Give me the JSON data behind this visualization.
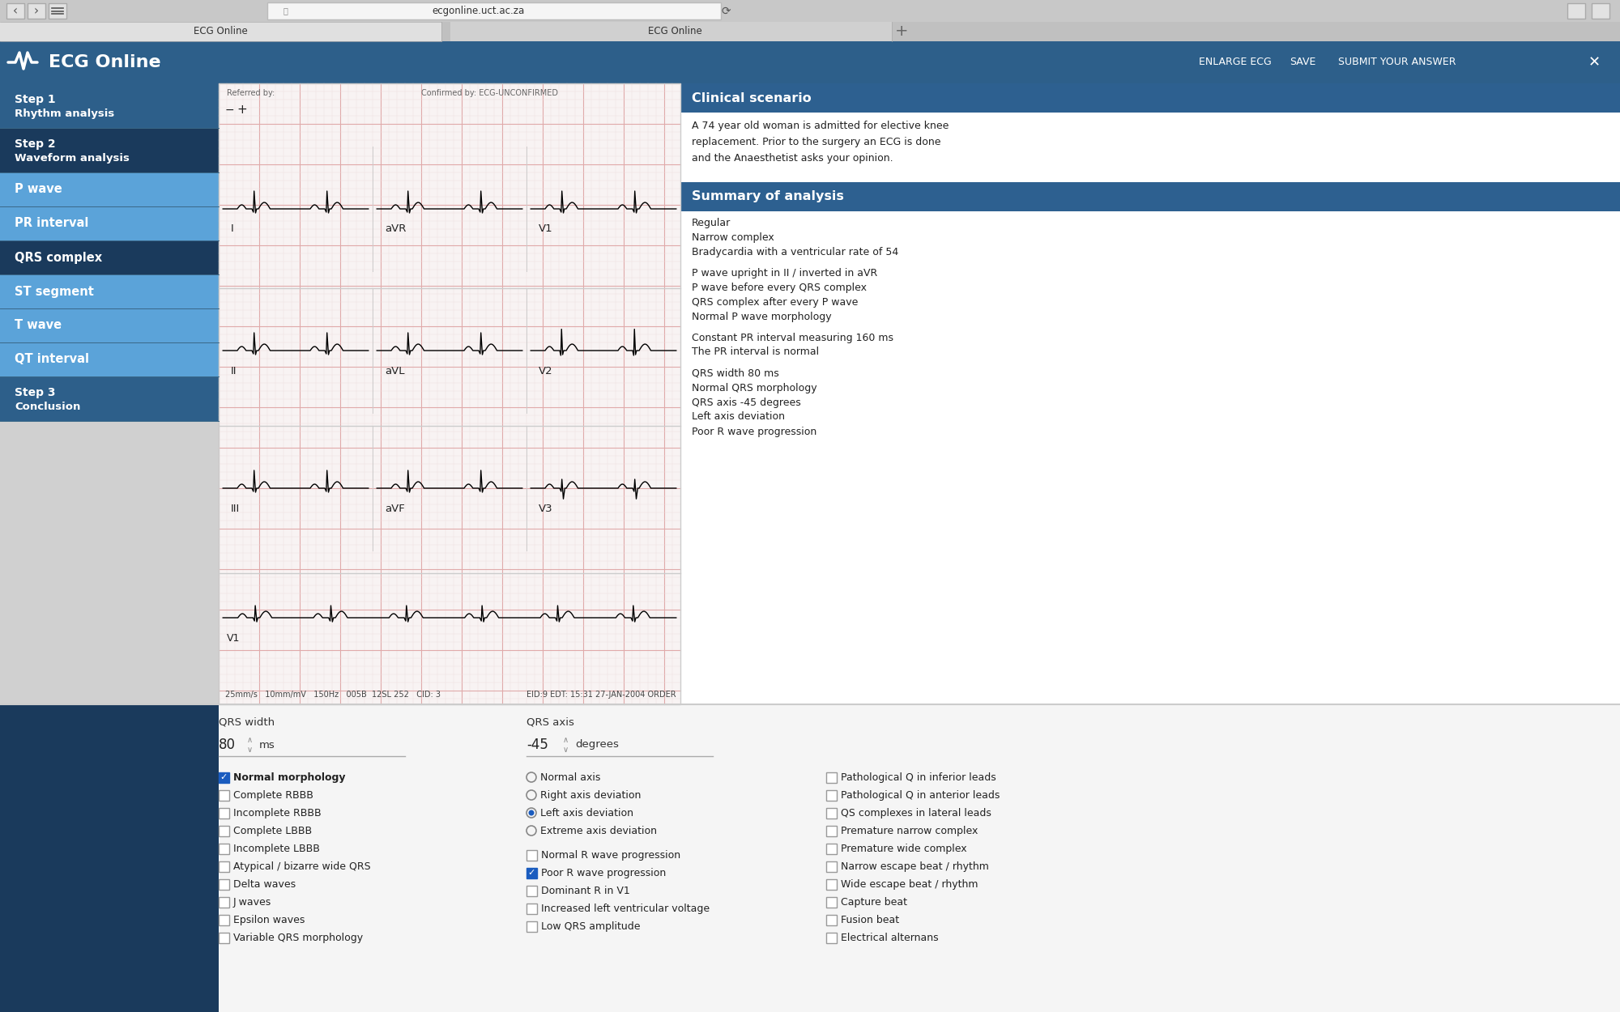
{
  "browser_bg": "#d0d0d0",
  "browser_url_text": "ecgonline.uct.ac.za",
  "tab_text_left": "ECG Online",
  "tab_text_right": "ECG Online",
  "navbar_bg": "#2d5f8a",
  "navbar_title": "ECG Online",
  "navbar_buttons": [
    "ENLARGE ECG",
    "SAVE",
    "SUBMIT YOUR ANSWER"
  ],
  "sidebar_items": [
    {
      "label": "Step 1\nRhythm analysis",
      "bg": "#2d5f8a"
    },
    {
      "label": "Step 2\nWaveform analysis",
      "bg": "#1a3a5c"
    },
    {
      "label": "P wave",
      "bg": "#5ba3d9"
    },
    {
      "label": "PR interval",
      "bg": "#5ba3d9"
    },
    {
      "label": "QRS complex",
      "bg": "#1a3a5c"
    },
    {
      "label": "ST segment",
      "bg": "#5ba3d9"
    },
    {
      "label": "T wave",
      "bg": "#5ba3d9"
    },
    {
      "label": "QT interval",
      "bg": "#5ba3d9"
    },
    {
      "label": "Step 3\nConclusion",
      "bg": "#2d5f8a"
    }
  ],
  "ecg_bg": "#f8f3f3",
  "ecg_grid_major": "#e0aaaa",
  "ecg_grid_minor": "#eedcdc",
  "clinical_scenario_bg": "#2d6090",
  "clinical_scenario_text": "Clinical scenario",
  "clinical_scenario_body": "A 74 year old woman is admitted for elective knee\nreplacement. Prior to the surgery an ECG is done\nand the Anaesthetist asks your opinion.",
  "summary_bg": "#2d6090",
  "summary_title": "Summary of analysis",
  "summary_items": [
    "Regular",
    "Narrow complex",
    "Bradycardia with a ventricular rate of 54",
    "",
    "P wave upright in II / inverted in aVR",
    "P wave before every QRS complex",
    "QRS complex after every P wave",
    "Normal P wave morphology",
    "",
    "Constant PR interval measuring 160 ms",
    "The PR interval is normal",
    "",
    "QRS width 80 ms",
    "Normal QRS morphology",
    "QRS axis -45 degrees",
    "Left axis deviation",
    "Poor R wave progression"
  ],
  "qrs_width_label": "QRS width",
  "qrs_width_value": "80",
  "qrs_width_unit": "ms",
  "qrs_axis_label": "QRS axis",
  "qrs_axis_value": "-45",
  "qrs_axis_unit": "degrees",
  "checkboxes_col1": [
    {
      "text": "Normal morphology",
      "checked": true,
      "bold": true
    },
    {
      "text": "Complete RBBB",
      "checked": false,
      "bold": false
    },
    {
      "text": "Incomplete RBBB",
      "checked": false,
      "bold": false
    },
    {
      "text": "Complete LBBB",
      "checked": false,
      "bold": false
    },
    {
      "text": "Incomplete LBBB",
      "checked": false,
      "bold": false
    },
    {
      "text": "Atypical / bizarre wide QRS",
      "checked": false,
      "bold": false
    },
    {
      "text": "Delta waves",
      "checked": false,
      "bold": false
    },
    {
      "text": "J waves",
      "checked": false,
      "bold": false
    },
    {
      "text": "Epsilon waves",
      "checked": false,
      "bold": false
    },
    {
      "text": "Variable QRS morphology",
      "checked": false,
      "bold": false
    }
  ],
  "radio_col2": [
    {
      "text": "Normal axis",
      "selected": false
    },
    {
      "text": "Right axis deviation",
      "selected": false
    },
    {
      "text": "Left axis deviation",
      "selected": true
    },
    {
      "text": "Extreme axis deviation",
      "selected": false
    }
  ],
  "checkboxes_col2b": [
    {
      "text": "Normal R wave progression",
      "checked": false
    },
    {
      "text": "Poor R wave progression",
      "checked": true
    },
    {
      "text": "Dominant R in V1",
      "checked": false
    },
    {
      "text": "Increased left ventricular voltage",
      "checked": false
    },
    {
      "text": "Low QRS amplitude",
      "checked": false
    }
  ],
  "checkboxes_col3": [
    {
      "text": "Pathological Q in inferior leads",
      "checked": false
    },
    {
      "text": "Pathological Q in anterior leads",
      "checked": false
    },
    {
      "text": "QS complexes in lateral leads",
      "checked": false
    },
    {
      "text": "Premature narrow complex",
      "checked": false
    },
    {
      "text": "Premature wide complex",
      "checked": false
    },
    {
      "text": "Narrow escape beat / rhythm",
      "checked": false
    },
    {
      "text": "Wide escape beat / rhythm",
      "checked": false
    },
    {
      "text": "Capture beat",
      "checked": false
    },
    {
      "text": "Fusion beat",
      "checked": false
    },
    {
      "text": "Electrical alternans",
      "checked": false
    }
  ],
  "ecg_bottom_text": "25mm/s   10mm/mV   150Hz   005B  12SL 252   CID: 3",
  "ecg_bottom_right": "EID:9 EDT: 15:31 27-JAN-2004 ORDER"
}
